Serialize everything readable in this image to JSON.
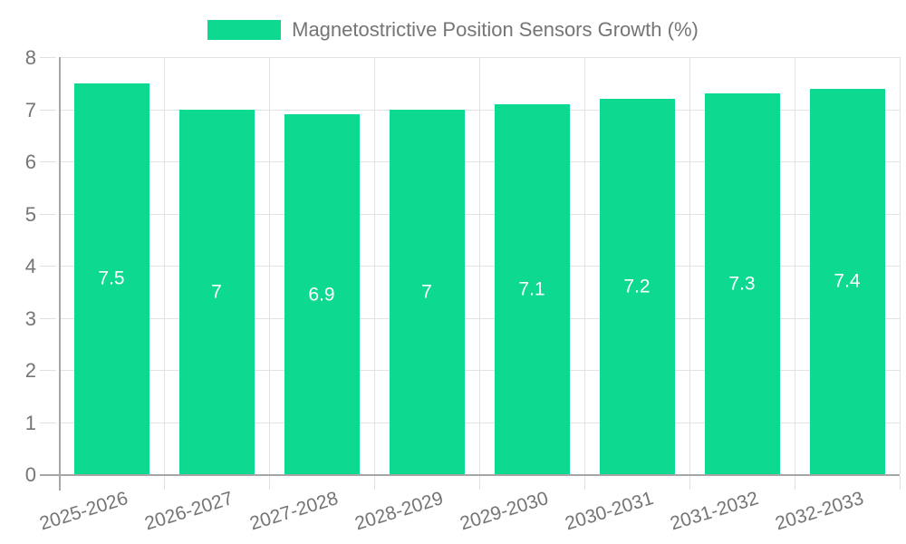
{
  "legend": {
    "label": "Magnetostrictive Position Sensors Growth (%)"
  },
  "chart_data": {
    "type": "bar",
    "title": "Magnetostrictive Position Sensors Growth (%)",
    "categories": [
      "2025-2026",
      "2026-2027",
      "2027-2028",
      "2028-2029",
      "2029-2030",
      "2030-2031",
      "2031-2032",
      "2032-2033"
    ],
    "values": [
      7.5,
      7,
      6.9,
      7,
      7.1,
      7.2,
      7.3,
      7.4
    ],
    "value_labels": [
      "7.5",
      "7",
      "6.9",
      "7",
      "7.1",
      "7.2",
      "7.3",
      "7.4"
    ],
    "xlabel": "",
    "ylabel": "",
    "ylim": [
      0,
      8
    ],
    "yticks": [
      "0",
      "1",
      "2",
      "3",
      "4",
      "5",
      "6",
      "7",
      "8"
    ],
    "grid": "on",
    "legend_position": "top",
    "colors": {
      "bar": "#0ed990",
      "value_label": "#ffffff",
      "axis": "#a6a6a6",
      "gridline": "#e3e3e3",
      "tick_label": "#757575",
      "background": "#ffffff"
    }
  }
}
